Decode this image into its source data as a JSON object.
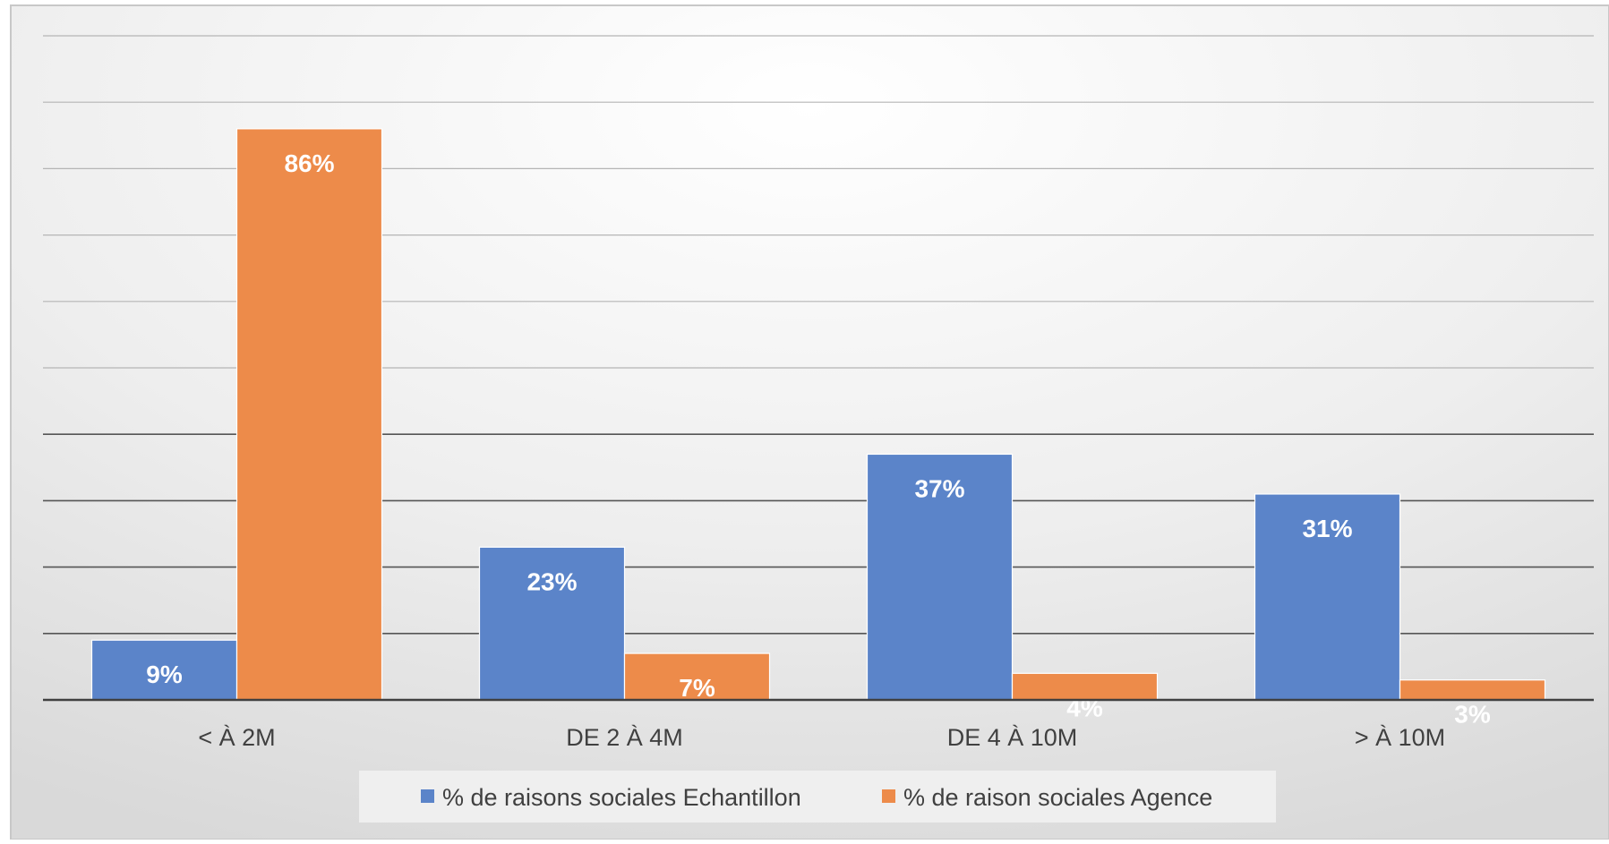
{
  "chart_data": {
    "type": "bar",
    "categories": [
      "< À 2M",
      "DE 2 À 4M",
      "DE 4 À 10M",
      "> À 10M"
    ],
    "series": [
      {
        "name": "% de raisons sociales Echantillon",
        "values": [
          9,
          23,
          37,
          31
        ],
        "labels": [
          "9%",
          "23%",
          "37%",
          "31%"
        ],
        "color": "#5b84c9"
      },
      {
        "name": "% de raison sociales Agence",
        "values": [
          86,
          7,
          4,
          3
        ],
        "labels": [
          "86%",
          "7%",
          "4%",
          "3%"
        ],
        "color": "#ed8b4a"
      }
    ],
    "ylim": [
      0,
      100
    ],
    "grid": true,
    "legend_position": "bottom"
  }
}
